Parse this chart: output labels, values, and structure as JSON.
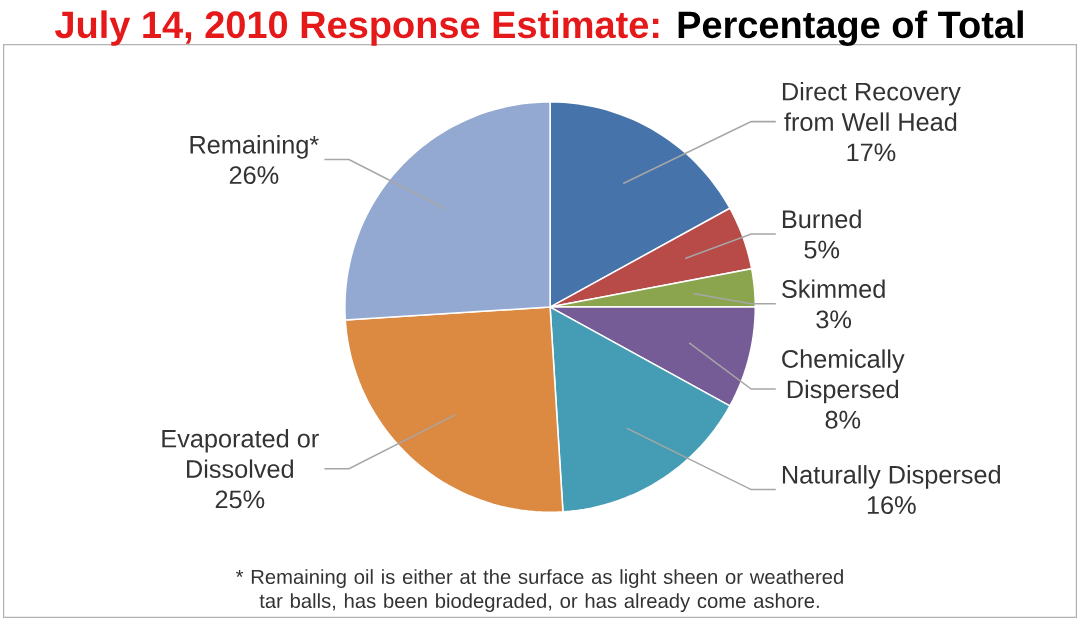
{
  "chart_data": {
    "type": "pie",
    "title": "July 14, 2010 Response Estimate:",
    "subtitle": "Percentage of Total",
    "categories": [
      "Direct Recovery from Well Head",
      "Burned",
      "Skimmed",
      "Chemically Dispersed",
      "Naturally Dispersed",
      "Evaporated or Dissolved",
      "Remaining*"
    ],
    "values": [
      17,
      5,
      3,
      8,
      16,
      25,
      26
    ],
    "value_labels": [
      "17%",
      "5%",
      "3%",
      "8%",
      "16%",
      "25%",
      "26%"
    ],
    "colors": [
      "#4674aa",
      "#b84a48",
      "#8aa54e",
      "#765c96",
      "#459db5",
      "#dc8a42",
      "#94a9d1"
    ],
    "annotations": [
      "* Remaining oil is either at the surface as light sheen or weathered tar balls, has been biodegraded, or has already come ashore."
    ]
  }
}
